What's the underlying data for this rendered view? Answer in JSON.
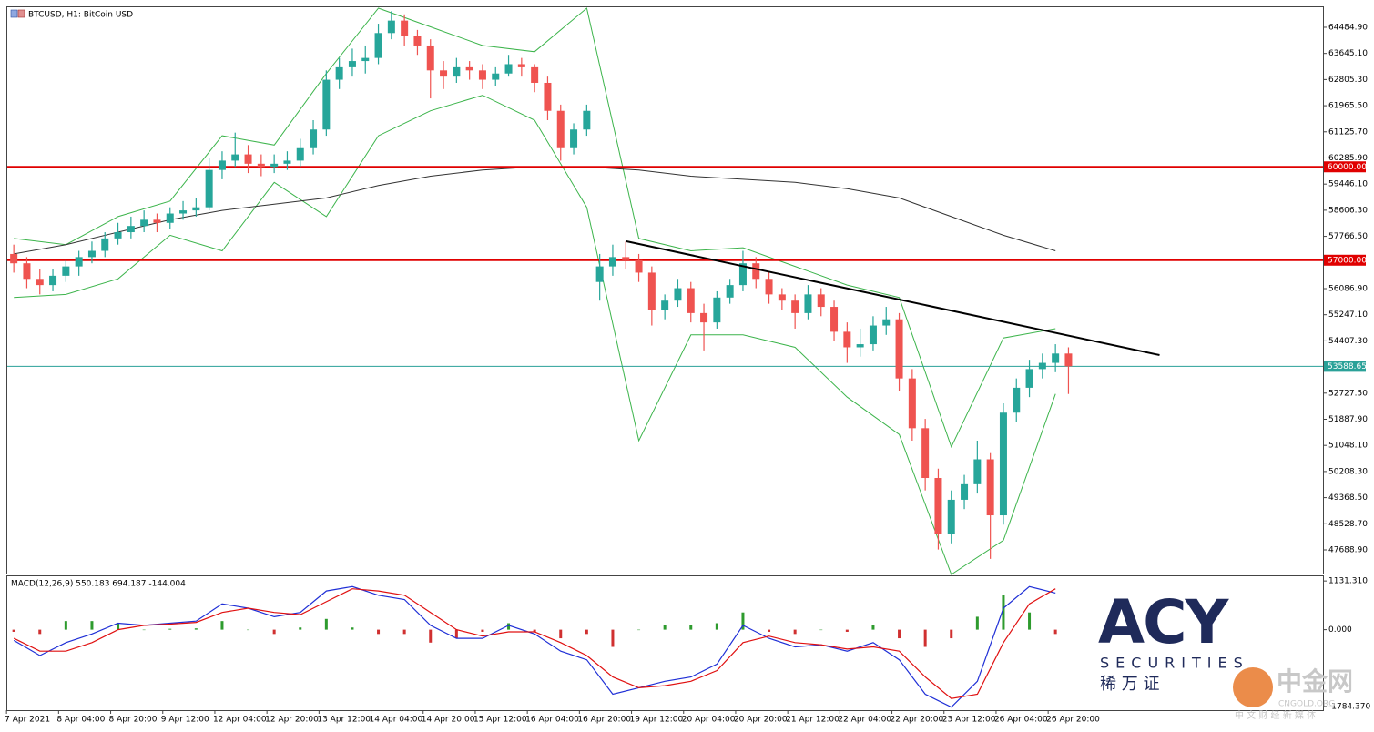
{
  "chart_data": {
    "type": "candlestick",
    "title": "BTCUSD, H1:  BitCoin USD",
    "up_color": "#26a69a",
    "down_color": "#ef5350",
    "ylim": [
      46928,
      65128
    ],
    "yticks": [
      {
        "value": 64484.9,
        "label": "64484.90"
      },
      {
        "value": 63645.1,
        "label": "63645.10"
      },
      {
        "value": 62805.3,
        "label": "62805.30"
      },
      {
        "value": 61965.5,
        "label": "61965.50"
      },
      {
        "value": 61125.7,
        "label": "61125.70"
      },
      {
        "value": 60285.9,
        "label": "60285.90"
      },
      {
        "value": 59446.1,
        "label": "59446.10"
      },
      {
        "value": 58606.3,
        "label": "58606.30"
      },
      {
        "value": 57766.5,
        "label": "57766.50"
      },
      {
        "value": 56086.9,
        "label": "56086.90"
      },
      {
        "value": 55247.1,
        "label": "55247.10"
      },
      {
        "value": 54407.3,
        "label": "54407.30"
      },
      {
        "value": 52727.5,
        "label": "52727.50"
      },
      {
        "value": 51887.9,
        "label": "51887.90"
      },
      {
        "value": 51048.1,
        "label": "51048.10"
      },
      {
        "value": 50208.3,
        "label": "50208.30"
      },
      {
        "value": 49368.5,
        "label": "49368.50"
      },
      {
        "value": 48528.7,
        "label": "48528.70"
      },
      {
        "value": 47688.9,
        "label": "47688.90"
      }
    ],
    "xticks": [
      {
        "value": 0,
        "label": "7 Apr 2021"
      },
      {
        "value": 4,
        "label": "8 Apr 04:00"
      },
      {
        "value": 8,
        "label": "8 Apr 20:00"
      },
      {
        "value": 12,
        "label": "9 Apr 12:00"
      },
      {
        "value": 16,
        "label": "12 Apr 04:00"
      },
      {
        "value": 20,
        "label": "12 Apr 20:00"
      },
      {
        "value": 24,
        "label": "13 Apr 12:00"
      },
      {
        "value": 28,
        "label": "14 Apr 04:00"
      },
      {
        "value": 32,
        "label": "14 Apr 20:00"
      },
      {
        "value": 36,
        "label": "15 Apr 12:00"
      },
      {
        "value": 40,
        "label": "16 Apr 04:00"
      },
      {
        "value": 44,
        "label": "16 Apr 20:00"
      },
      {
        "value": 48,
        "label": "19 Apr 12:00"
      },
      {
        "value": 52,
        "label": "20 Apr 04:00"
      },
      {
        "value": 56,
        "label": "20 Apr 20:00"
      },
      {
        "value": 60,
        "label": "21 Apr 12:00"
      },
      {
        "value": 64,
        "label": "22 Apr 04:00"
      },
      {
        "value": 68,
        "label": "22 Apr 20:00"
      },
      {
        "value": 72,
        "label": "23 Apr 12:00"
      },
      {
        "value": 76,
        "label": "26 Apr 04:00"
      },
      {
        "value": 80,
        "label": "26 Apr 20:00"
      }
    ],
    "candles": [
      [
        57200,
        57500,
        56600,
        56900
      ],
      [
        56900,
        57100,
        56100,
        56400
      ],
      [
        56400,
        56700,
        55900,
        56200
      ],
      [
        56200,
        56700,
        56000,
        56500
      ],
      [
        56500,
        57000,
        56300,
        56800
      ],
      [
        56800,
        57300,
        56500,
        57100
      ],
      [
        57100,
        57600,
        56900,
        57300
      ],
      [
        57300,
        57900,
        57100,
        57700
      ],
      [
        57700,
        58200,
        57500,
        57900
      ],
      [
        57900,
        58400,
        57700,
        58100
      ],
      [
        58100,
        58600,
        57900,
        58300
      ],
      [
        58300,
        58500,
        57900,
        58200
      ],
      [
        58200,
        58700,
        58000,
        58500
      ],
      [
        58500,
        58900,
        58300,
        58600
      ],
      [
        58600,
        59000,
        58400,
        58700
      ],
      [
        58700,
        60300,
        58600,
        59900
      ],
      [
        59900,
        60500,
        59600,
        60200
      ],
      [
        60200,
        61100,
        60000,
        60400
      ],
      [
        60400,
        60700,
        59800,
        60100
      ],
      [
        60100,
        60400,
        59700,
        60000
      ],
      [
        60000,
        60400,
        59800,
        60100
      ],
      [
        60100,
        60500,
        59900,
        60200
      ],
      [
        60200,
        60900,
        60000,
        60600
      ],
      [
        60600,
        61500,
        60400,
        61200
      ],
      [
        61200,
        63100,
        61000,
        62800
      ],
      [
        62800,
        63500,
        62500,
        63200
      ],
      [
        63200,
        63800,
        62900,
        63400
      ],
      [
        63400,
        63900,
        63000,
        63500
      ],
      [
        63500,
        64600,
        63300,
        64300
      ],
      [
        64300,
        65000,
        64100,
        64700
      ],
      [
        64700,
        64900,
        63900,
        64200
      ],
      [
        64200,
        64400,
        63600,
        63900
      ],
      [
        63900,
        64100,
        62200,
        63100
      ],
      [
        63100,
        63400,
        62500,
        62900
      ],
      [
        62900,
        63500,
        62700,
        63200
      ],
      [
        63200,
        63400,
        62800,
        63100
      ],
      [
        63100,
        63300,
        62500,
        62800
      ],
      [
        62800,
        63200,
        62600,
        63000
      ],
      [
        63000,
        63600,
        62900,
        63300
      ],
      [
        63300,
        63500,
        62900,
        63200
      ],
      [
        63200,
        63300,
        62400,
        62700
      ],
      [
        62700,
        62900,
        61500,
        61800
      ],
      [
        61800,
        62000,
        60200,
        60600
      ],
      [
        60600,
        61400,
        60400,
        61200
      ],
      [
        61200,
        62000,
        61000,
        61800
      ],
      [
        56300,
        57200,
        55700,
        56800
      ],
      [
        56800,
        57500,
        56500,
        57100
      ],
      [
        57100,
        57600,
        56700,
        57000
      ],
      [
        57000,
        57200,
        56300,
        56600
      ],
      [
        56600,
        56800,
        54900,
        55400
      ],
      [
        55400,
        55900,
        55100,
        55700
      ],
      [
        55700,
        56400,
        55500,
        56100
      ],
      [
        56100,
        56300,
        55000,
        55300
      ],
      [
        55300,
        55600,
        54100,
        55000
      ],
      [
        55000,
        56000,
        54800,
        55800
      ],
      [
        55800,
        56400,
        55600,
        56200
      ],
      [
        56200,
        57300,
        56000,
        56900
      ],
      [
        56900,
        57100,
        56100,
        56400
      ],
      [
        56400,
        56600,
        55600,
        55900
      ],
      [
        55900,
        56100,
        55400,
        55700
      ],
      [
        55700,
        55900,
        54800,
        55300
      ],
      [
        55300,
        56200,
        55100,
        55900
      ],
      [
        55900,
        56100,
        55200,
        55500
      ],
      [
        55500,
        55700,
        54400,
        54700
      ],
      [
        54700,
        55000,
        53700,
        54200
      ],
      [
        54200,
        54800,
        53900,
        54300
      ],
      [
        54300,
        55200,
        54100,
        54900
      ],
      [
        54900,
        55500,
        54600,
        55100
      ],
      [
        55100,
        55300,
        52800,
        53200
      ],
      [
        53200,
        53500,
        51200,
        51600
      ],
      [
        51600,
        51900,
        49600,
        50000
      ],
      [
        50000,
        50300,
        47700,
        48200
      ],
      [
        48200,
        49600,
        47900,
        49300
      ],
      [
        49300,
        50100,
        49000,
        49800
      ],
      [
        49800,
        51200,
        49500,
        50600
      ],
      [
        50600,
        50800,
        47400,
        48800
      ],
      [
        48800,
        52400,
        48500,
        52100
      ],
      [
        52100,
        53200,
        51800,
        52900
      ],
      [
        52900,
        53800,
        52600,
        53500
      ],
      [
        53500,
        54000,
        53200,
        53700
      ],
      [
        53700,
        54300,
        53400,
        54000
      ],
      [
        54000,
        54200,
        52700,
        53588.65
      ]
    ],
    "levels": [
      {
        "value": 60000,
        "label": "60000.00",
        "color": "#e00000"
      },
      {
        "value": 57000,
        "label": "57000.00",
        "color": "#e00000"
      },
      {
        "value": 53588.65,
        "label": "53588.65",
        "color": "#2aa198"
      }
    ],
    "trendline": {
      "x": [
        47,
        88
      ],
      "values": [
        57610,
        53950
      ],
      "color": "#000000"
    },
    "ma": {
      "x": [
        0,
        4,
        8,
        12,
        16,
        20,
        24,
        28,
        32,
        36,
        40,
        44,
        48,
        52,
        56,
        60,
        64,
        68,
        72,
        76,
        80
      ],
      "values": [
        57200,
        57500,
        57900,
        58300,
        58600,
        58800,
        59000,
        59400,
        59700,
        59900,
        60000,
        60000,
        59900,
        59700,
        59600,
        59500,
        59300,
        59000,
        58400,
        57800,
        57300
      ],
      "color": "#333333"
    },
    "bands": {
      "x": [
        0,
        4,
        8,
        12,
        16,
        20,
        24,
        28,
        32,
        36,
        40,
        44,
        48,
        52,
        56,
        60,
        64,
        68,
        72,
        76,
        80
      ],
      "upper": [
        57700,
        57500,
        58400,
        58900,
        61000,
        60700,
        63000,
        65100,
        64500,
        63900,
        63700,
        65100,
        57700,
        57300,
        57400,
        56800,
        56200,
        55800,
        51000,
        54500,
        54800
      ],
      "lower": [
        55800,
        55900,
        56400,
        57800,
        57300,
        59500,
        58400,
        61000,
        61800,
        62300,
        61500,
        58700,
        51200,
        54600,
        54600,
        54200,
        52600,
        51400,
        46900,
        48000,
        52700
      ],
      "color": "#3cb44b"
    },
    "macd": {
      "title": "MACD(12,26,9) 550.183 694.187 -144.004",
      "ylim": [
        -1870,
        1240
      ],
      "yticks": [
        {
          "value": 1131.31,
          "label": "1131.310"
        },
        {
          "value": 0,
          "label": "0.000"
        },
        {
          "value": -1784.37,
          "label": "-1784.370"
        }
      ],
      "x": [
        0,
        2,
        4,
        6,
        8,
        10,
        12,
        14,
        16,
        18,
        20,
        22,
        24,
        26,
        28,
        30,
        32,
        34,
        36,
        38,
        40,
        42,
        44,
        46,
        48,
        50,
        52,
        54,
        56,
        58,
        60,
        62,
        64,
        66,
        68,
        70,
        72,
        74,
        76,
        78,
        80
      ],
      "macd": [
        -250,
        -600,
        -300,
        -100,
        150,
        100,
        150,
        200,
        600,
        500,
        300,
        400,
        900,
        1000,
        800,
        700,
        100,
        -200,
        -200,
        100,
        -100,
        -500,
        -700,
        -1500,
        -1350,
        -1200,
        -1100,
        -800,
        100,
        -200,
        -400,
        -350,
        -500,
        -300,
        -700,
        -1500,
        -1800,
        -1200,
        500,
        1000,
        850
      ],
      "signal": [
        -200,
        -500,
        -500,
        -300,
        0,
        100,
        130,
        170,
        400,
        500,
        400,
        350,
        650,
        950,
        900,
        800,
        400,
        0,
        -150,
        -50,
        -50,
        -300,
        -600,
        -1100,
        -1350,
        -1300,
        -1200,
        -950,
        -300,
        -150,
        -300,
        -350,
        -450,
        -400,
        -500,
        -1100,
        -1600,
        -1500,
        -300,
        600,
        950
      ],
      "histogram": [
        -50,
        -100,
        200,
        200,
        150,
        0,
        20,
        30,
        200,
        0,
        -100,
        50,
        250,
        50,
        -100,
        -100,
        -300,
        -200,
        -50,
        150,
        -50,
        -200,
        -100,
        -400,
        0,
        100,
        100,
        150,
        400,
        -50,
        -100,
        0,
        -50,
        100,
        -200,
        -400,
        -200,
        300,
        800,
        400,
        -100
      ],
      "macd_color": "#1f2fd6",
      "signal_color": "#e01010",
      "up_color": "#2e9b2e",
      "down_color": "#d03030"
    }
  },
  "branding": {
    "logo": "ACY",
    "securities": "SECURITIES",
    "chinese": "稀 万 证",
    "watermark": "中金网",
    "watermark_site": "CNGOLD.ORG",
    "watermark_tagline": "中 文 财 经 新 媒 体"
  }
}
